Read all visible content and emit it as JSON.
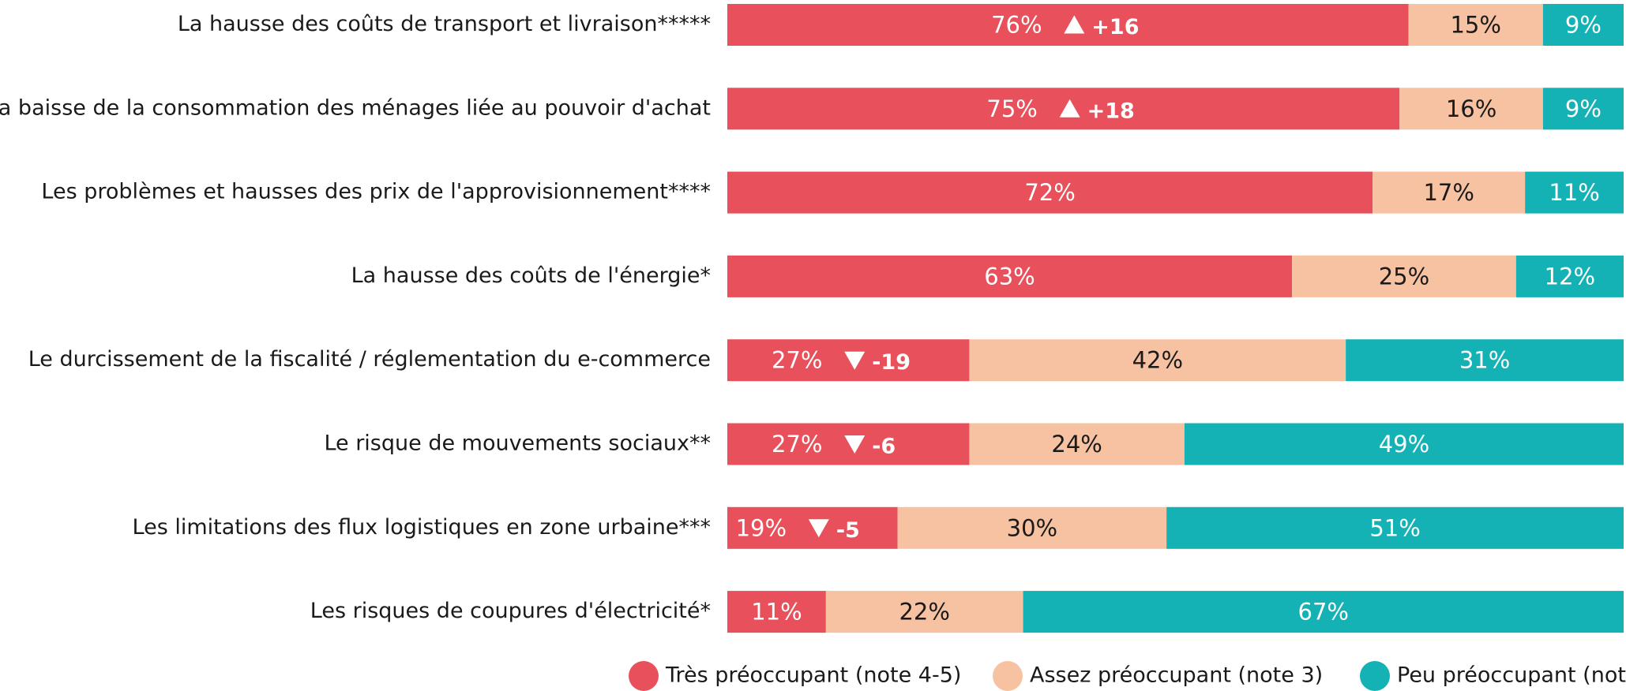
{
  "chart_data": {
    "type": "stacked-bar-horizontal",
    "categories": [
      "La hausse des coûts de transport et livraison*****",
      "La baisse de la consommation des ménages liée au pouvoir d'achat",
      "Les problèmes et hausses des prix de l'approvisionnement****",
      "La hausse des coûts de l'énergie*",
      "Le durcissement de la fiscalité / réglementation du e-commerce",
      "Le risque de mouvements sociaux**",
      "Les limitations des flux logistiques en zone urbaine***",
      "Les risques de coupures d'électricité*"
    ],
    "xlim": [
      0,
      100
    ],
    "series": [
      {
        "name": "Très préoccupant (note 4-5)",
        "color": "#e8505b",
        "text_color": "#ffffff",
        "values": [
          76,
          75,
          72,
          63,
          27,
          27,
          19,
          11
        ],
        "value_labels": [
          "76%",
          "75%",
          "72%",
          "63%",
          "27%",
          "27%",
          "19%",
          "11%"
        ]
      },
      {
        "name": "Assez préoccupant (note 3)",
        "color": "#f7c2a2",
        "text_color": "#1a1a1a",
        "values": [
          15,
          16,
          17,
          25,
          42,
          24,
          30,
          22
        ],
        "value_labels": [
          "15%",
          "16%",
          "17%",
          "25%",
          "42%",
          "24%",
          "30%",
          "22%"
        ]
      },
      {
        "name": "Peu préoccupant (not",
        "color": "#14b1b5",
        "text_color": "#ffffff",
        "values": [
          9,
          9,
          11,
          12,
          31,
          49,
          51,
          67
        ],
        "value_labels": [
          "9%",
          "9%",
          "11%",
          "12%",
          "31%",
          "49%",
          "51%",
          "67%"
        ]
      }
    ],
    "changes": [
      16,
      18,
      null,
      null,
      -19,
      -6,
      -5,
      null
    ],
    "change_labels": [
      "+16",
      "+18",
      null,
      null,
      "-19",
      "-6",
      "-5",
      null
    ]
  }
}
